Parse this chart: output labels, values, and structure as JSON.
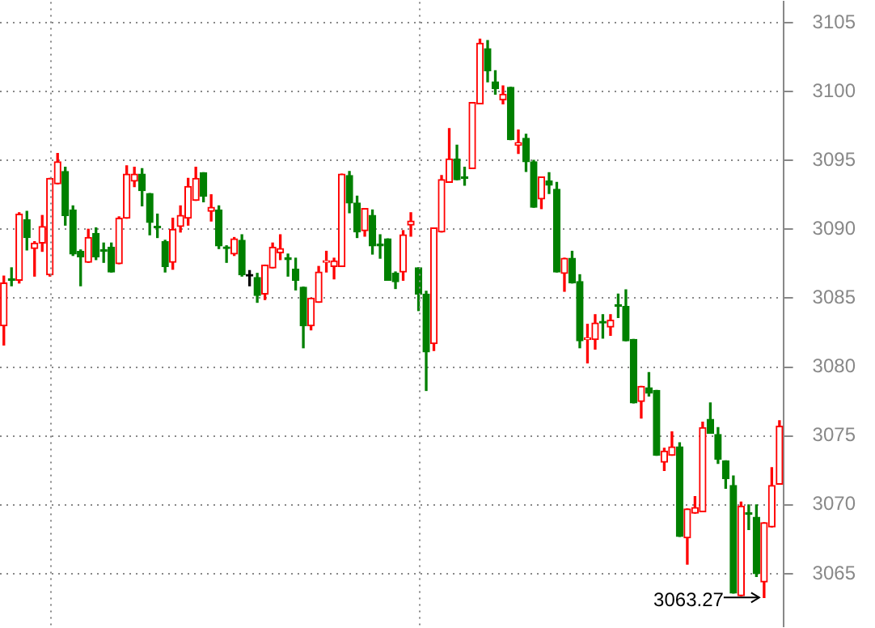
{
  "chart_data": {
    "type": "candlestick",
    "categories": [
      null,
      null,
      null,
      null,
      null,
      null,
      null,
      null,
      null,
      null,
      null,
      null,
      null,
      null,
      null,
      null,
      null,
      null,
      null,
      null,
      null,
      null,
      null,
      null,
      null,
      null,
      null,
      null,
      null,
      null,
      null,
      null,
      null,
      null,
      null,
      null,
      null,
      null,
      null,
      null,
      null,
      null,
      null,
      null,
      null,
      null,
      null,
      null,
      null,
      null,
      null,
      null,
      null,
      null,
      null,
      null,
      null,
      null,
      null,
      null,
      null,
      null,
      null,
      null,
      null,
      null,
      null,
      null,
      null,
      null,
      null,
      null,
      null,
      null,
      null,
      null,
      null,
      null,
      null,
      null,
      null,
      null,
      null,
      null,
      null,
      null,
      null,
      null,
      null,
      null,
      null,
      null,
      null,
      null,
      null,
      null,
      null,
      null,
      null,
      null,
      null,
      null
    ],
    "ohlc": [
      [
        3083.0,
        3086.6,
        3081.6,
        3086.1
      ],
      [
        3086.4,
        3087.2,
        3085.9,
        3086.3
      ],
      [
        3086.3,
        3091.2,
        3086.1,
        3091.1
      ],
      [
        3090.7,
        3091.3,
        3088.5,
        3089.4
      ],
      [
        3088.6,
        3089.1,
        3086.6,
        3089.0
      ],
      [
        3089.0,
        3091.0,
        3088.4,
        3090.2
      ],
      [
        3086.7,
        3093.7,
        3086.6,
        3093.7
      ],
      [
        3093.3,
        3095.5,
        3093.3,
        3094.9
      ],
      [
        3094.2,
        3094.5,
        3090.3,
        3091.0
      ],
      [
        3091.4,
        3091.7,
        3088.1,
        3088.2
      ],
      [
        3088.4,
        3088.5,
        3085.9,
        3088.0
      ],
      [
        3087.6,
        3090.0,
        3087.6,
        3089.4
      ],
      [
        3089.7,
        3090.1,
        3087.8,
        3088.0
      ],
      [
        3088.5,
        3089.0,
        3087.6,
        3088.4
      ],
      [
        3088.7,
        3089.0,
        3086.9,
        3086.9
      ],
      [
        3087.5,
        3090.9,
        3087.5,
        3090.8
      ],
      [
        3090.8,
        3094.6,
        3090.8,
        3094.0
      ],
      [
        3093.5,
        3094.5,
        3093.1,
        3094.0
      ],
      [
        3094.0,
        3094.4,
        3091.7,
        3092.8
      ],
      [
        3092.6,
        3092.6,
        3089.6,
        3090.5
      ],
      [
        3090.2,
        3091.1,
        3089.4,
        3090.1
      ],
      [
        3089.1,
        3089.2,
        3086.9,
        3087.3
      ],
      [
        3087.6,
        3090.8,
        3087.1,
        3090.0
      ],
      [
        3090.2,
        3091.7,
        3089.8,
        3091.0
      ],
      [
        3090.8,
        3093.7,
        3090.3,
        3093.1
      ],
      [
        3092.1,
        3094.5,
        3092.1,
        3093.7
      ],
      [
        3094.1,
        3094.1,
        3092.0,
        3092.4
      ],
      [
        3091.3,
        3092.5,
        3090.6,
        3091.6
      ],
      [
        3091.4,
        3091.7,
        3088.6,
        3088.8
      ],
      [
        3088.7,
        3088.8,
        3087.6,
        3088.6
      ],
      [
        3088.2,
        3089.4,
        3088.1,
        3089.3
      ],
      [
        3089.2,
        3089.6,
        3086.6,
        3086.7
      ],
      [
        3086.6,
        3087.0,
        3085.9,
        3086.6
      ],
      [
        3086.5,
        3086.8,
        3084.7,
        3085.2
      ],
      [
        3085.3,
        3087.4,
        3084.9,
        3087.4
      ],
      [
        3087.2,
        3089.0,
        3087.2,
        3088.7
      ],
      [
        3088.3,
        3089.6,
        3087.8,
        3088.6
      ],
      [
        3087.9,
        3088.2,
        3086.6,
        3087.8
      ],
      [
        3087.1,
        3087.9,
        3085.6,
        3086.3
      ],
      [
        3085.8,
        3085.8,
        3081.4,
        3083.0
      ],
      [
        3083.0,
        3085.0,
        3082.7,
        3085.0
      ],
      [
        3084.7,
        3087.3,
        3084.7,
        3086.9
      ],
      [
        3087.6,
        3088.4,
        3086.9,
        3087.7
      ],
      [
        3087.3,
        3087.9,
        3086.4,
        3087.7
      ],
      [
        3087.3,
        3094.0,
        3087.3,
        3094.0
      ],
      [
        3093.9,
        3094.2,
        3091.2,
        3091.9
      ],
      [
        3091.9,
        3092.4,
        3089.4,
        3089.8
      ],
      [
        3089.9,
        3091.5,
        3089.5,
        3091.5
      ],
      [
        3091.0,
        3091.4,
        3088.2,
        3088.8
      ],
      [
        3088.9,
        3089.6,
        3087.9,
        3088.8
      ],
      [
        3089.3,
        3089.3,
        3086.3,
        3086.3
      ],
      [
        3086.8,
        3086.9,
        3085.7,
        3086.2
      ],
      [
        3086.9,
        3089.9,
        3086.3,
        3089.6
      ],
      [
        3090.3,
        3091.2,
        3089.5,
        3090.6
      ],
      [
        3087.2,
        3087.2,
        3084.1,
        3085.3
      ],
      [
        3085.3,
        3085.5,
        3078.3,
        3081.1
      ],
      [
        3081.7,
        3090.1,
        3081.2,
        3090.1
      ],
      [
        3089.8,
        3093.9,
        3089.8,
        3093.6
      ],
      [
        3093.4,
        3097.3,
        3093.4,
        3095.1
      ],
      [
        3095.1,
        3096.1,
        3093.6,
        3093.6
      ],
      [
        3093.8,
        3094.5,
        3093.2,
        3093.7
      ],
      [
        3094.4,
        3099.2,
        3094.4,
        3099.2
      ],
      [
        3099.1,
        3103.8,
        3099.1,
        3103.5
      ],
      [
        3103.1,
        3103.7,
        3100.7,
        3101.5
      ],
      [
        3100.7,
        3101.5,
        3099.8,
        3100.2
      ],
      [
        3099.4,
        3100.4,
        3099.1,
        3099.8
      ],
      [
        3100.3,
        3100.3,
        3096.5,
        3096.5
      ],
      [
        3096.1,
        3097.2,
        3095.5,
        3096.3
      ],
      [
        3096.6,
        3096.9,
        3094.2,
        3094.9
      ],
      [
        3094.9,
        3095.0,
        3091.6,
        3091.6
      ],
      [
        3092.2,
        3093.8,
        3091.5,
        3093.8
      ],
      [
        3093.5,
        3094.1,
        3092.6,
        3093.2
      ],
      [
        3092.9,
        3093.4,
        3086.9,
        3086.9
      ],
      [
        3086.8,
        3087.9,
        3085.5,
        3087.9
      ],
      [
        3087.9,
        3088.4,
        3086.1,
        3086.1
      ],
      [
        3086.2,
        3086.7,
        3081.4,
        3081.9
      ],
      [
        3082.0,
        3083.1,
        3080.3,
        3082.1
      ],
      [
        3082.0,
        3083.8,
        3081.3,
        3083.2
      ],
      [
        3083.3,
        3083.8,
        3082.1,
        3083.2
      ],
      [
        3082.9,
        3083.8,
        3082.3,
        3083.4
      ],
      [
        3084.5,
        3085.3,
        3083.6,
        3084.4
      ],
      [
        3084.4,
        3085.6,
        3081.9,
        3081.9
      ],
      [
        3082.0,
        3082.0,
        3077.4,
        3077.4
      ],
      [
        3077.5,
        3078.6,
        3076.3,
        3078.6
      ],
      [
        3078.5,
        3079.6,
        3077.9,
        3078.1
      ],
      [
        3078.3,
        3078.3,
        3073.6,
        3073.6
      ],
      [
        3073.1,
        3074.1,
        3072.5,
        3073.9
      ],
      [
        3073.6,
        3075.3,
        3073.6,
        3074.2
      ],
      [
        3074.2,
        3074.5,
        3067.7,
        3067.7
      ],
      [
        3067.6,
        3069.7,
        3065.7,
        3069.7
      ],
      [
        3069.4,
        3070.6,
        3069.4,
        3069.8
      ],
      [
        3069.5,
        3076.0,
        3069.5,
        3075.6
      ],
      [
        3076.2,
        3077.4,
        3075.2,
        3075.2
      ],
      [
        3075.1,
        3075.6,
        3073.0,
        3073.3
      ],
      [
        3073.2,
        3073.2,
        3071.2,
        3071.9
      ],
      [
        3071.4,
        3072.1,
        3063.6,
        3063.6
      ],
      [
        3063.4,
        3070.2,
        3063.4,
        3069.9
      ],
      [
        3069.4,
        3070.0,
        3068.2,
        3069.3
      ],
      [
        3069.1,
        3070.0,
        3064.8,
        3065.0
      ],
      [
        3064.4,
        3068.7,
        3063.27,
        3068.7
      ],
      [
        3068.4,
        3072.7,
        3068.4,
        3071.4
      ],
      [
        3071.5,
        3076.1,
        3071.5,
        3075.7
      ]
    ],
    "colors": [
      "#ff0000",
      "#008000",
      "#ff0000",
      "#008000",
      "#ff0000",
      "#ff0000",
      "#ff0000",
      "#ff0000",
      "#008000",
      "#008000",
      "#008000",
      "#ff0000",
      "#008000",
      "#008000",
      "#008000",
      "#ff0000",
      "#ff0000",
      "#ff0000",
      "#008000",
      "#008000",
      "#008000",
      "#008000",
      "#ff0000",
      "#ff0000",
      "#ff0000",
      "#ff0000",
      "#008000",
      "#ff0000",
      "#008000",
      "#008000",
      "#ff0000",
      "#008000",
      "#000000",
      "#008000",
      "#ff0000",
      "#ff0000",
      "#ff0000",
      "#008000",
      "#008000",
      "#008000",
      "#ff0000",
      "#ff0000",
      "#ff0000",
      "#ff0000",
      "#ff0000",
      "#008000",
      "#008000",
      "#ff0000",
      "#008000",
      "#008000",
      "#008000",
      "#008000",
      "#ff0000",
      "#ff0000",
      "#008000",
      "#008000",
      "#ff0000",
      "#ff0000",
      "#ff0000",
      "#008000",
      "#008000",
      "#ff0000",
      "#ff0000",
      "#008000",
      "#008000",
      "#ff0000",
      "#008000",
      "#ff0000",
      "#008000",
      "#008000",
      "#ff0000",
      "#008000",
      "#008000",
      "#ff0000",
      "#008000",
      "#008000",
      "#ff0000",
      "#ff0000",
      "#008000",
      "#ff0000",
      "#008000",
      "#008000",
      "#008000",
      "#ff0000",
      "#008000",
      "#008000",
      "#ff0000",
      "#ff0000",
      "#008000",
      "#ff0000",
      "#ff0000",
      "#ff0000",
      "#008000",
      "#008000",
      "#008000",
      "#008000",
      "#ff0000",
      "#008000",
      "#008000",
      "#ff0000",
      "#ff0000",
      "#ff0000"
    ],
    "ylim": [
      3061.2,
      3106.5
    ],
    "yticks": [
      3065,
      3070,
      3075,
      3080,
      3085,
      3090,
      3095,
      3100,
      3105
    ],
    "grid": "y",
    "tick_labels": "y",
    "legend": false,
    "annotations": [
      "3063.27"
    ]
  }
}
